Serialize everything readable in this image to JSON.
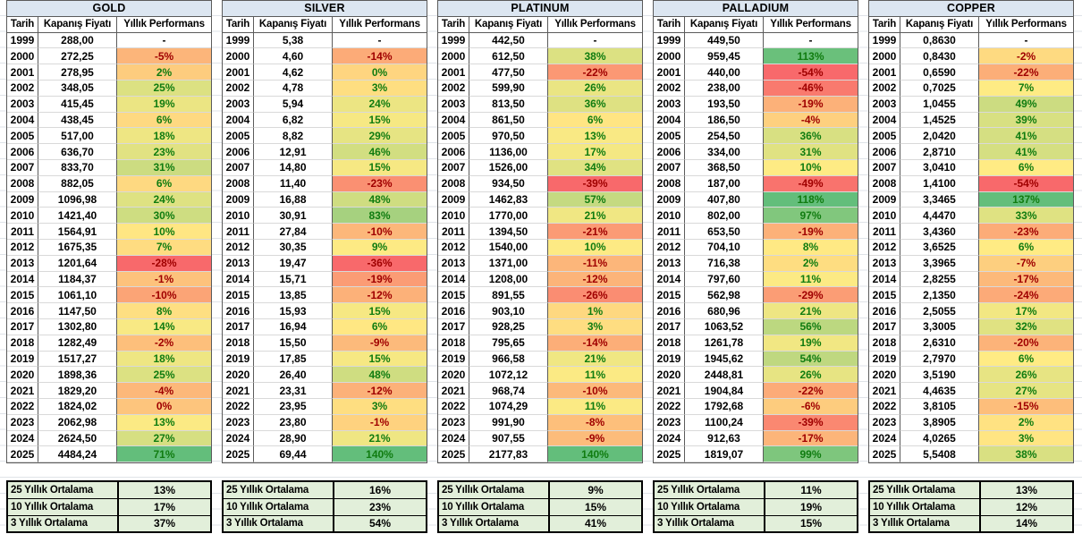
{
  "ui": {
    "columns": [
      "Tarih",
      "Kapanış Fiyatı",
      "Yıllık Performans"
    ],
    "summary_labels": [
      "25 Yıllık Ortalama",
      "10 Yıllık Ortalama",
      "3 Yıllık Ortalama"
    ],
    "colors": {
      "title_bg": "#DCE6F1",
      "summary_bg": "#E2EFDA",
      "scale_min": "#F8696B",
      "scale_mid": "#FFEB84",
      "scale_max": "#63BE7B",
      "neg_text": "#A00000",
      "pos_text": "#107C10",
      "grid_line": "#d9d9d9",
      "border_dark": "#5b5b5b"
    }
  },
  "chart_data": [
    {
      "type": "table",
      "title": "GOLD",
      "rows": [
        [
          "1999",
          "288,00",
          "-",
          null,
          ""
        ],
        [
          "2000",
          "272,25",
          "-5%",
          -5,
          "neg"
        ],
        [
          "2001",
          "278,95",
          "2%",
          2,
          "pos"
        ],
        [
          "2002",
          "348,05",
          "25%",
          25,
          "pos"
        ],
        [
          "2003",
          "415,45",
          "19%",
          19,
          "pos"
        ],
        [
          "2004",
          "438,45",
          "6%",
          6,
          "pos"
        ],
        [
          "2005",
          "517,00",
          "18%",
          18,
          "pos"
        ],
        [
          "2006",
          "636,70",
          "23%",
          23,
          "pos"
        ],
        [
          "2007",
          "833,70",
          "31%",
          31,
          "pos"
        ],
        [
          "2008",
          "882,05",
          "6%",
          6,
          "pos"
        ],
        [
          "2009",
          "1096,98",
          "24%",
          24,
          "pos"
        ],
        [
          "2010",
          "1421,40",
          "30%",
          30,
          "pos"
        ],
        [
          "2011",
          "1564,91",
          "10%",
          10,
          "pos"
        ],
        [
          "2012",
          "1675,35",
          "7%",
          7,
          "pos"
        ],
        [
          "2013",
          "1201,64",
          "-28%",
          -28,
          "neg"
        ],
        [
          "2014",
          "1184,37",
          "-1%",
          -1,
          "neg"
        ],
        [
          "2015",
          "1061,10",
          "-10%",
          -10,
          "neg"
        ],
        [
          "2016",
          "1147,50",
          "8%",
          8,
          "pos"
        ],
        [
          "2017",
          "1302,80",
          "14%",
          14,
          "pos"
        ],
        [
          "2018",
          "1282,49",
          "-2%",
          -2,
          "neg"
        ],
        [
          "2019",
          "1517,27",
          "18%",
          18,
          "pos"
        ],
        [
          "2020",
          "1898,36",
          "25%",
          25,
          "pos"
        ],
        [
          "2021",
          "1829,20",
          "-4%",
          -4,
          "neg"
        ],
        [
          "2022",
          "1824,02",
          "0%",
          0,
          "neg"
        ],
        [
          "2023",
          "2062,98",
          "13%",
          13,
          "pos"
        ],
        [
          "2024",
          "2624,50",
          "27%",
          27,
          "pos"
        ],
        [
          "2025",
          "4484,24",
          "71%",
          71,
          "pos"
        ]
      ],
      "summary": [
        "13%",
        "17%",
        "37%"
      ]
    },
    {
      "type": "table",
      "title": "SILVER",
      "rows": [
        [
          "1999",
          "5,38",
          "-",
          null,
          ""
        ],
        [
          "2000",
          "4,60",
          "-14%",
          -14,
          "neg"
        ],
        [
          "2001",
          "4,62",
          "0%",
          0,
          "pos"
        ],
        [
          "2002",
          "4,78",
          "3%",
          3,
          "pos"
        ],
        [
          "2003",
          "5,94",
          "24%",
          24,
          "pos"
        ],
        [
          "2004",
          "6,82",
          "15%",
          15,
          "pos"
        ],
        [
          "2005",
          "8,82",
          "29%",
          29,
          "pos"
        ],
        [
          "2006",
          "12,91",
          "46%",
          46,
          "pos"
        ],
        [
          "2007",
          "14,80",
          "15%",
          15,
          "pos"
        ],
        [
          "2008",
          "11,40",
          "-23%",
          -23,
          "neg"
        ],
        [
          "2009",
          "16,88",
          "48%",
          48,
          "pos"
        ],
        [
          "2010",
          "30,91",
          "83%",
          83,
          "pos"
        ],
        [
          "2011",
          "27,84",
          "-10%",
          -10,
          "neg"
        ],
        [
          "2012",
          "30,35",
          "9%",
          9,
          "pos"
        ],
        [
          "2013",
          "19,47",
          "-36%",
          -36,
          "neg"
        ],
        [
          "2014",
          "15,71",
          "-19%",
          -19,
          "neg"
        ],
        [
          "2015",
          "13,85",
          "-12%",
          -12,
          "neg"
        ],
        [
          "2016",
          "15,93",
          "15%",
          15,
          "pos"
        ],
        [
          "2017",
          "16,94",
          "6%",
          6,
          "pos"
        ],
        [
          "2018",
          "15,50",
          "-9%",
          -9,
          "neg"
        ],
        [
          "2019",
          "17,85",
          "15%",
          15,
          "pos"
        ],
        [
          "2020",
          "26,40",
          "48%",
          48,
          "pos"
        ],
        [
          "2021",
          "23,31",
          "-12%",
          -12,
          "neg"
        ],
        [
          "2022",
          "23,95",
          "3%",
          3,
          "pos"
        ],
        [
          "2023",
          "23,80",
          "-1%",
          -1,
          "neg"
        ],
        [
          "2024",
          "28,90",
          "21%",
          21,
          "pos"
        ],
        [
          "2025",
          "69,44",
          "140%",
          140,
          "pos"
        ]
      ],
      "summary": [
        "16%",
        "23%",
        "54%"
      ]
    },
    {
      "type": "table",
      "title": "PLATINUM",
      "rows": [
        [
          "1999",
          "442,50",
          "-",
          null,
          ""
        ],
        [
          "2000",
          "612,50",
          "38%",
          38,
          "pos"
        ],
        [
          "2001",
          "477,50",
          "-22%",
          -22,
          "neg"
        ],
        [
          "2002",
          "599,90",
          "26%",
          26,
          "pos"
        ],
        [
          "2003",
          "813,50",
          "36%",
          36,
          "pos"
        ],
        [
          "2004",
          "861,50",
          "6%",
          6,
          "pos"
        ],
        [
          "2005",
          "970,50",
          "13%",
          13,
          "pos"
        ],
        [
          "2006",
          "1136,00",
          "17%",
          17,
          "pos"
        ],
        [
          "2007",
          "1526,00",
          "34%",
          34,
          "pos"
        ],
        [
          "2008",
          "934,50",
          "-39%",
          -39,
          "neg"
        ],
        [
          "2009",
          "1462,83",
          "57%",
          57,
          "pos"
        ],
        [
          "2010",
          "1770,00",
          "21%",
          21,
          "pos"
        ],
        [
          "2011",
          "1394,50",
          "-21%",
          -21,
          "neg"
        ],
        [
          "2012",
          "1540,00",
          "10%",
          10,
          "pos"
        ],
        [
          "2013",
          "1371,00",
          "-11%",
          -11,
          "neg"
        ],
        [
          "2014",
          "1208,00",
          "-12%",
          -12,
          "neg"
        ],
        [
          "2015",
          "891,55",
          "-26%",
          -26,
          "neg"
        ],
        [
          "2016",
          "903,10",
          "1%",
          1,
          "pos"
        ],
        [
          "2017",
          "928,25",
          "3%",
          3,
          "pos"
        ],
        [
          "2018",
          "795,65",
          "-14%",
          -14,
          "neg"
        ],
        [
          "2019",
          "966,58",
          "21%",
          21,
          "pos"
        ],
        [
          "2020",
          "1072,12",
          "11%",
          11,
          "pos"
        ],
        [
          "2021",
          "968,74",
          "-10%",
          -10,
          "neg"
        ],
        [
          "2022",
          "1074,29",
          "11%",
          11,
          "pos"
        ],
        [
          "2023",
          "991,90",
          "-8%",
          -8,
          "neg"
        ],
        [
          "2024",
          "907,55",
          "-9%",
          -9,
          "neg"
        ],
        [
          "2025",
          "2177,83",
          "140%",
          140,
          "pos"
        ]
      ],
      "summary": [
        "9%",
        "15%",
        "41%"
      ]
    },
    {
      "type": "table",
      "title": "PALLADIUM",
      "rows": [
        [
          "1999",
          "449,50",
          "-",
          null,
          ""
        ],
        [
          "2000",
          "959,45",
          "113%",
          113,
          "pos"
        ],
        [
          "2001",
          "440,00",
          "-54%",
          -54,
          "neg"
        ],
        [
          "2002",
          "238,00",
          "-46%",
          -46,
          "neg"
        ],
        [
          "2003",
          "193,50",
          "-19%",
          -19,
          "neg"
        ],
        [
          "2004",
          "186,50",
          "-4%",
          -4,
          "neg"
        ],
        [
          "2005",
          "254,50",
          "36%",
          36,
          "pos"
        ],
        [
          "2006",
          "334,00",
          "31%",
          31,
          "pos"
        ],
        [
          "2007",
          "368,50",
          "10%",
          10,
          "pos"
        ],
        [
          "2008",
          "187,00",
          "-49%",
          -49,
          "neg"
        ],
        [
          "2009",
          "407,80",
          "118%",
          118,
          "pos"
        ],
        [
          "2010",
          "802,00",
          "97%",
          97,
          "pos"
        ],
        [
          "2011",
          "653,50",
          "-19%",
          -19,
          "neg"
        ],
        [
          "2012",
          "704,10",
          "8%",
          8,
          "pos"
        ],
        [
          "2013",
          "716,38",
          "2%",
          2,
          "pos"
        ],
        [
          "2014",
          "797,60",
          "11%",
          11,
          "pos"
        ],
        [
          "2015",
          "562,98",
          "-29%",
          -29,
          "neg"
        ],
        [
          "2016",
          "680,96",
          "21%",
          21,
          "pos"
        ],
        [
          "2017",
          "1063,52",
          "56%",
          56,
          "pos"
        ],
        [
          "2018",
          "1261,78",
          "19%",
          19,
          "pos"
        ],
        [
          "2019",
          "1945,62",
          "54%",
          54,
          "pos"
        ],
        [
          "2020",
          "2448,81",
          "26%",
          26,
          "pos"
        ],
        [
          "2021",
          "1904,84",
          "-22%",
          -22,
          "neg"
        ],
        [
          "2022",
          "1792,68",
          "-6%",
          -6,
          "neg"
        ],
        [
          "2023",
          "1100,24",
          "-39%",
          -39,
          "neg"
        ],
        [
          "2024",
          "912,63",
          "-17%",
          -17,
          "neg"
        ],
        [
          "2025",
          "1819,07",
          "99%",
          99,
          "pos"
        ]
      ],
      "summary": [
        "11%",
        "19%",
        "15%"
      ]
    },
    {
      "type": "table",
      "title": "COPPER",
      "rows": [
        [
          "1999",
          "0,8630",
          "-",
          null,
          ""
        ],
        [
          "2000",
          "0,8430",
          "-2%",
          -2,
          "neg"
        ],
        [
          "2001",
          "0,6590",
          "-22%",
          -22,
          "neg"
        ],
        [
          "2002",
          "0,7025",
          "7%",
          7,
          "pos"
        ],
        [
          "2003",
          "1,0455",
          "49%",
          49,
          "pos"
        ],
        [
          "2004",
          "1,4525",
          "39%",
          39,
          "pos"
        ],
        [
          "2005",
          "2,0420",
          "41%",
          41,
          "pos"
        ],
        [
          "2006",
          "2,8710",
          "41%",
          41,
          "pos"
        ],
        [
          "2007",
          "3,0410",
          "6%",
          6,
          "pos"
        ],
        [
          "2008",
          "1,4100",
          "-54%",
          -54,
          "neg"
        ],
        [
          "2009",
          "3,3465",
          "137%",
          137,
          "pos"
        ],
        [
          "2010",
          "4,4470",
          "33%",
          33,
          "pos"
        ],
        [
          "2011",
          "3,4360",
          "-23%",
          -23,
          "neg"
        ],
        [
          "2012",
          "3,6525",
          "6%",
          6,
          "pos"
        ],
        [
          "2013",
          "3,3965",
          "-7%",
          -7,
          "neg"
        ],
        [
          "2014",
          "2,8255",
          "-17%",
          -17,
          "neg"
        ],
        [
          "2015",
          "2,1350",
          "-24%",
          -24,
          "neg"
        ],
        [
          "2016",
          "2,5055",
          "17%",
          17,
          "pos"
        ],
        [
          "2017",
          "3,3005",
          "32%",
          32,
          "pos"
        ],
        [
          "2018",
          "2,6310",
          "-20%",
          -20,
          "neg"
        ],
        [
          "2019",
          "2,7970",
          "6%",
          6,
          "pos"
        ],
        [
          "2020",
          "3,5190",
          "26%",
          26,
          "pos"
        ],
        [
          "2021",
          "4,4635",
          "27%",
          27,
          "pos"
        ],
        [
          "2022",
          "3,8105",
          "-15%",
          -15,
          "neg"
        ],
        [
          "2023",
          "3,8905",
          "2%",
          2,
          "pos"
        ],
        [
          "2024",
          "4,0265",
          "3%",
          3,
          "pos"
        ],
        [
          "2025",
          "5,5408",
          "38%",
          38,
          "pos"
        ]
      ],
      "summary": [
        "13%",
        "12%",
        "14%"
      ]
    }
  ]
}
